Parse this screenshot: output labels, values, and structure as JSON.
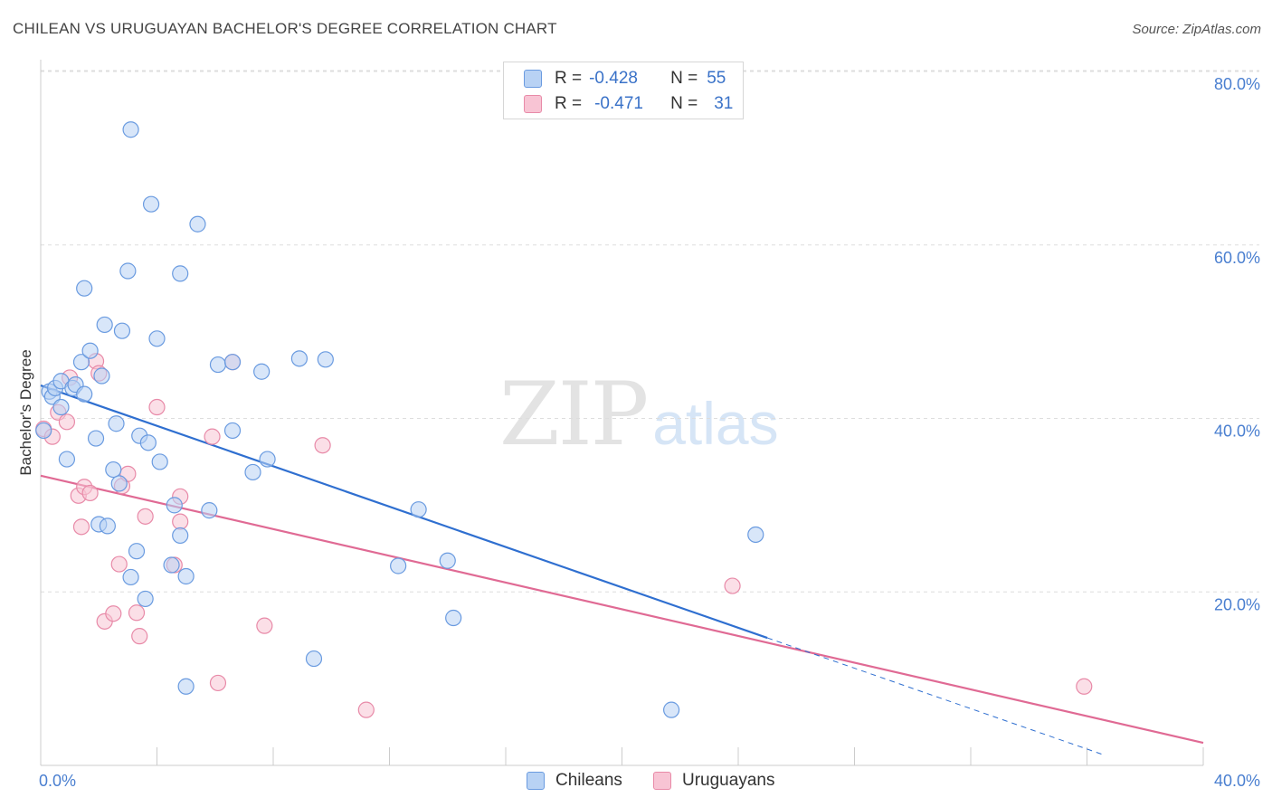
{
  "header": {
    "title": "CHILEAN VS URUGUAYAN BACHELOR'S DEGREE CORRELATION CHART",
    "source": "Source: ZipAtlas.com"
  },
  "legend": {
    "rows": [
      {
        "r_label": "R =",
        "r_value": "-0.428",
        "n_label": "N =",
        "n_value": "55",
        "color": "#b8d2f4"
      },
      {
        "r_label": "R =",
        "r_value": "-0.471",
        "n_label": "N =",
        "n_value": "31",
        "color": "#f8c4d4"
      }
    ]
  },
  "series_legend": {
    "chileans": "Chileans",
    "uruguayans": "Uruguayans"
  },
  "watermark": {
    "zip": "ZIP",
    "atlas": "atlas"
  },
  "colors": {
    "blue_fill": "#b8d2f4",
    "blue_stroke": "#6a9be0",
    "blue_line": "#2f6fd0",
    "pink_fill": "#f8c4d4",
    "pink_stroke": "#e88aa8",
    "pink_line": "#e06a94",
    "grid": "#dddddd",
    "tick_label": "#4a7fd0"
  },
  "chart_data": {
    "type": "scatter",
    "title": "CHILEAN VS URUGUAYAN BACHELOR'S DEGREE CORRELATION CHART",
    "xlabel": "",
    "ylabel": "Bachelor's Degree",
    "xlim": [
      0,
      40
    ],
    "ylim": [
      0,
      80
    ],
    "x_tick_labels": {
      "left": "0.0%",
      "right": "40.0%"
    },
    "y_ticks": [
      {
        "value": 20,
        "label": "20.0%"
      },
      {
        "value": 40,
        "label": "40.0%"
      },
      {
        "value": 60,
        "label": "60.0%"
      },
      {
        "value": 80,
        "label": "80.0%"
      }
    ],
    "series": [
      {
        "name": "Chileans",
        "R": -0.428,
        "N": 55,
        "trend": {
          "x0": 0,
          "y0": 43.8,
          "x1": 25.0,
          "y1": 14.7,
          "dash_to_x": 36.5,
          "dash_to_y": 1.3
        },
        "points": [
          [
            0.1,
            38.6
          ],
          [
            0.3,
            43.1
          ],
          [
            0.4,
            42.5
          ],
          [
            0.5,
            43.5
          ],
          [
            0.7,
            41.3
          ],
          [
            0.7,
            44.3
          ],
          [
            0.9,
            35.3
          ],
          [
            1.1,
            43.5
          ],
          [
            1.2,
            43.9
          ],
          [
            1.4,
            46.5
          ],
          [
            1.5,
            55.0
          ],
          [
            1.5,
            42.8
          ],
          [
            1.7,
            47.8
          ],
          [
            1.9,
            37.7
          ],
          [
            2.0,
            27.8
          ],
          [
            2.1,
            44.9
          ],
          [
            2.2,
            50.8
          ],
          [
            2.3,
            27.6
          ],
          [
            2.5,
            34.1
          ],
          [
            2.6,
            39.4
          ],
          [
            2.7,
            32.5
          ],
          [
            2.8,
            50.1
          ],
          [
            3.0,
            57.0
          ],
          [
            3.1,
            21.7
          ],
          [
            3.1,
            73.3
          ],
          [
            3.3,
            24.7
          ],
          [
            3.4,
            38.0
          ],
          [
            3.6,
            19.2
          ],
          [
            3.7,
            37.2
          ],
          [
            3.8,
            64.7
          ],
          [
            4.0,
            49.2
          ],
          [
            4.1,
            35.0
          ],
          [
            4.5,
            23.1
          ],
          [
            4.6,
            30.0
          ],
          [
            4.8,
            56.7
          ],
          [
            4.8,
            26.5
          ],
          [
            5.0,
            21.8
          ],
          [
            5.4,
            62.4
          ],
          [
            5.8,
            29.4
          ],
          [
            6.1,
            46.2
          ],
          [
            6.6,
            46.5
          ],
          [
            6.6,
            38.6
          ],
          [
            7.6,
            45.4
          ],
          [
            7.8,
            35.3
          ],
          [
            8.9,
            46.9
          ],
          [
            9.4,
            12.3
          ],
          [
            9.8,
            46.8
          ],
          [
            13.0,
            29.5
          ],
          [
            12.3,
            23.0
          ],
          [
            14.0,
            23.6
          ],
          [
            14.2,
            17.0
          ],
          [
            5.0,
            9.1
          ],
          [
            7.3,
            33.8
          ],
          [
            21.7,
            6.4
          ],
          [
            24.6,
            26.6
          ]
        ]
      },
      {
        "name": "Uruguayans",
        "R": -0.471,
        "N": 31,
        "trend": {
          "x0": 0,
          "y0": 33.4,
          "x1": 40,
          "y1": 2.6
        },
        "points": [
          [
            0.1,
            38.8
          ],
          [
            0.4,
            37.9
          ],
          [
            0.6,
            40.7
          ],
          [
            0.9,
            39.6
          ],
          [
            1.0,
            44.7
          ],
          [
            1.3,
            31.1
          ],
          [
            1.4,
            27.5
          ],
          [
            1.5,
            32.1
          ],
          [
            1.7,
            31.4
          ],
          [
            1.9,
            46.6
          ],
          [
            2.0,
            45.2
          ],
          [
            2.2,
            16.6
          ],
          [
            2.5,
            17.5
          ],
          [
            2.7,
            23.2
          ],
          [
            2.8,
            32.2
          ],
          [
            3.0,
            33.6
          ],
          [
            3.3,
            17.6
          ],
          [
            3.4,
            14.9
          ],
          [
            3.6,
            28.7
          ],
          [
            4.0,
            41.3
          ],
          [
            4.6,
            23.1
          ],
          [
            4.8,
            28.1
          ],
          [
            5.9,
            37.9
          ],
          [
            6.1,
            9.5
          ],
          [
            6.6,
            46.5
          ],
          [
            7.7,
            16.1
          ],
          [
            9.7,
            36.9
          ],
          [
            11.2,
            6.4
          ],
          [
            23.8,
            20.7
          ],
          [
            35.9,
            9.1
          ],
          [
            4.8,
            31.0
          ]
        ]
      }
    ]
  }
}
